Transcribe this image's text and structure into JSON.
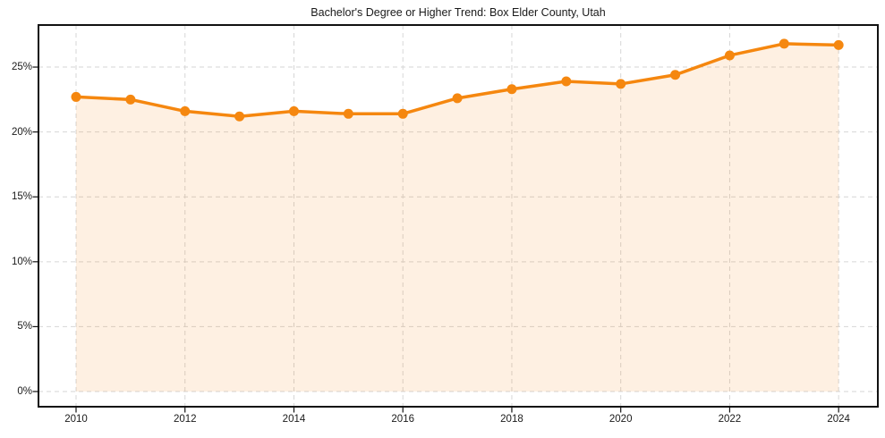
{
  "chart_data": {
    "type": "area",
    "title": "Bachelor's Degree or Higher Trend: Box Elder County, Utah",
    "x": [
      2010,
      2011,
      2012,
      2013,
      2014,
      2015,
      2016,
      2017,
      2018,
      2019,
      2020,
      2021,
      2022,
      2023,
      2024
    ],
    "values": [
      22.7,
      22.5,
      21.6,
      21.2,
      21.6,
      21.4,
      21.4,
      22.6,
      23.3,
      23.9,
      23.7,
      24.4,
      25.9,
      26.8,
      26.7
    ],
    "xlabel": "",
    "ylabel": "",
    "x_ticks": [
      2010,
      2012,
      2014,
      2016,
      2018,
      2020,
      2022,
      2024
    ],
    "x_tick_labels": [
      "2010",
      "2012",
      "2014",
      "2016",
      "2018",
      "2020",
      "2022",
      "2024"
    ],
    "y_ticks": [
      0,
      5,
      10,
      15,
      20,
      25
    ],
    "y_tick_labels": [
      "0%",
      "5%",
      "10%",
      "15%",
      "20%",
      "25%"
    ],
    "xlim": [
      2009.31,
      2024.72
    ],
    "ylim": [
      -1.17,
      28.24
    ],
    "grid": true,
    "grid_style": "dashed",
    "legend": "none",
    "marker": "circle",
    "area_baseline": 0,
    "colors": {
      "line": "#f5870f",
      "marker": "#f5870f",
      "fill": "rgba(245, 135, 15, 0.12)",
      "grid": "#d6d6d6",
      "spine": "#111111",
      "text": "#1a1a1a"
    }
  }
}
